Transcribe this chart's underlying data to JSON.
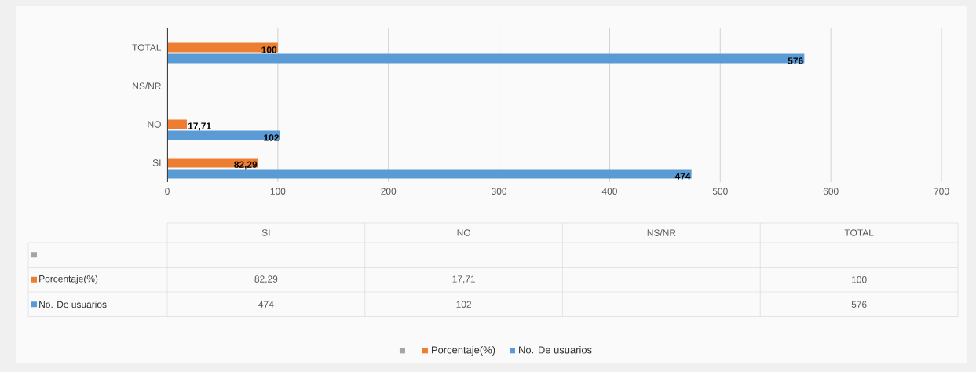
{
  "chart_data": {
    "type": "bar",
    "orientation": "horizontal",
    "categories": [
      "TOTAL",
      "NS/NR",
      "NO",
      "SI"
    ],
    "series": [
      {
        "color": "#a5a5a5",
        "values": [
          null,
          null,
          null,
          null
        ]
      },
      {
        "name": "Porcentaje(%)",
        "color": "#ed7d31",
        "values": [
          100,
          null,
          17.71,
          82.29
        ],
        "value_labels": [
          "100",
          null,
          "17,71",
          "82,29"
        ]
      },
      {
        "name": "No. De usuarios",
        "color": "#5b9bd5",
        "values": [
          576,
          null,
          102,
          474
        ],
        "value_labels": [
          "576",
          null,
          "102",
          "474"
        ]
      }
    ],
    "xlim": [
      0,
      700
    ],
    "xticks": [
      0,
      100,
      200,
      300,
      400,
      500,
      600,
      700
    ],
    "grid": "x",
    "legend": "bottom"
  }
}
